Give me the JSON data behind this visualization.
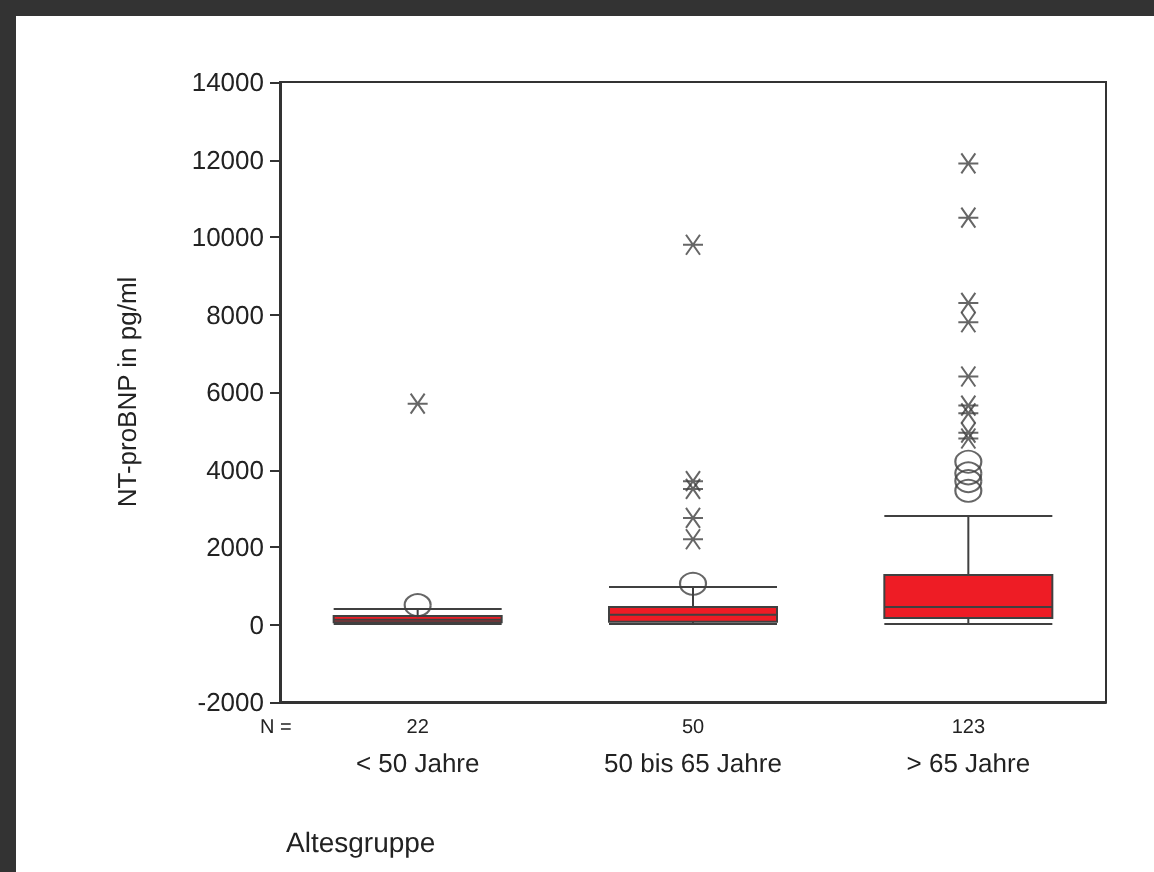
{
  "chart_data": {
    "type": "box",
    "xlabel": "Altesgruppe",
    "ylabel": "NT-proBNP in pg/ml",
    "categories": [
      "< 50 Jahre",
      "50 bis 65 Jahre",
      "> 65 Jahre"
    ],
    "ylim": [
      -2000,
      14000
    ],
    "yticks": [
      -2000,
      0,
      2000,
      4000,
      6000,
      8000,
      10000,
      12000,
      14000
    ],
    "series": [
      {
        "color": "#ee1c25",
        "boxes": [
          {
            "low": 10,
            "q1": 60,
            "median": 120,
            "q3": 220,
            "high": 400
          },
          {
            "low": 10,
            "q1": 70,
            "median": 250,
            "q3": 450,
            "high": 970
          },
          {
            "low": 10,
            "q1": 170,
            "median": 450,
            "q3": 1280,
            "high": 2800
          }
        ]
      },
      {
        "type": "scatter",
        "marker": "circle",
        "color": "#404040",
        "x": [
          "< 50 Jahre",
          "50 bis 65 Jahre",
          "> 65 Jahre",
          "> 65 Jahre",
          "> 65 Jahre",
          "> 65 Jahre"
        ],
        "values": [
          500,
          1050,
          4200,
          3900,
          3700,
          3450
        ]
      },
      {
        "type": "scatter",
        "marker": "cross",
        "color": "#404040",
        "x": [
          "< 50 Jahre",
          "50 bis 65 Jahre",
          "50 bis 65 Jahre",
          "50 bis 65 Jahre",
          "50 bis 65 Jahre",
          "50 bis 65 Jahre",
          "> 65 Jahre",
          "> 65 Jahre",
          "> 65 Jahre",
          "> 65 Jahre",
          "> 65 Jahre",
          "> 65 Jahre",
          "> 65 Jahre",
          "> 65 Jahre",
          "> 65 Jahre"
        ],
        "values": [
          5700,
          9800,
          3700,
          3500,
          2750,
          2200,
          11900,
          10500,
          8300,
          7800,
          6400,
          5650,
          5450,
          4950,
          4800
        ]
      }
    ],
    "annotations": [
      "N =",
      "22",
      "50",
      "123"
    ]
  }
}
